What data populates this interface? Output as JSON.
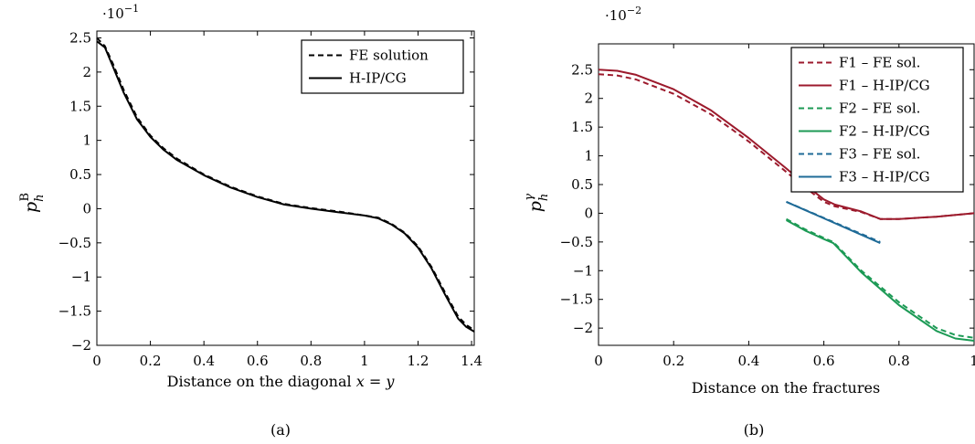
{
  "chart_data": [
    {
      "type": "line",
      "caption": "(a)",
      "xlabel": "Distance on the diagonal x = y",
      "ylabel": "p_h^B",
      "y_multiplier": "·10^−1",
      "xlim": [
        0,
        1.41
      ],
      "ylim": [
        -2,
        2.6
      ],
      "xticks": [
        "0",
        "0.2",
        "0.4",
        "0.6",
        "0.8",
        "1",
        "1.2",
        "1.4"
      ],
      "yticks": [
        "2.5",
        "2",
        "1.5",
        "1",
        "0.5",
        "0",
        "−0.5",
        "−1",
        "−1.5",
        "−2"
      ],
      "grid": false,
      "legend_position": "top-right",
      "series": [
        {
          "name": "FE solution",
          "style": "dashed",
          "color": "#000000",
          "x": [
            0,
            0.03,
            0.06,
            0.1,
            0.15,
            0.2,
            0.25,
            0.3,
            0.4,
            0.5,
            0.6,
            0.7,
            0.8,
            0.9,
            1.0,
            1.05,
            1.1,
            1.15,
            1.2,
            1.25,
            1.3,
            1.35,
            1.38,
            1.41
          ],
          "y": [
            2.5,
            2.38,
            2.12,
            1.74,
            1.34,
            1.07,
            0.88,
            0.73,
            0.5,
            0.32,
            0.18,
            0.07,
            0.01,
            -0.04,
            -0.1,
            -0.13,
            -0.22,
            -0.35,
            -0.55,
            -0.85,
            -1.22,
            -1.58,
            -1.7,
            -1.78
          ]
        },
        {
          "name": "H-IP/CG",
          "style": "solid",
          "color": "#000000",
          "x": [
            0,
            0.03,
            0.06,
            0.1,
            0.15,
            0.2,
            0.25,
            0.3,
            0.4,
            0.5,
            0.6,
            0.7,
            0.8,
            0.9,
            1.0,
            1.05,
            1.1,
            1.15,
            1.2,
            1.25,
            1.3,
            1.35,
            1.38,
            1.41
          ],
          "y": [
            2.45,
            2.36,
            2.08,
            1.7,
            1.31,
            1.05,
            0.86,
            0.71,
            0.49,
            0.31,
            0.17,
            0.06,
            0.0,
            -0.05,
            -0.1,
            -0.14,
            -0.23,
            -0.36,
            -0.57,
            -0.87,
            -1.25,
            -1.61,
            -1.73,
            -1.8
          ]
        }
      ]
    },
    {
      "type": "line",
      "caption": "(b)",
      "xlabel": "Distance on the fractures",
      "ylabel": "p_h^γ",
      "y_multiplier": "·10^−2",
      "xlim": [
        0,
        1
      ],
      "ylim": [
        -2.3,
        2.95
      ],
      "xticks": [
        "0",
        "0.2",
        "0.4",
        "0.6",
        "0.8",
        "1"
      ],
      "yticks": [
        "2.5",
        "2",
        "1.5",
        "1",
        "0.5",
        "0",
        "−0.5",
        "−1",
        "−1.5",
        "−2"
      ],
      "grid": false,
      "legend_position": "top-right",
      "series": [
        {
          "name": "F1 – FE sol.",
          "style": "dashed",
          "color": "#9c1a2c",
          "x": [
            0,
            0.05,
            0.1,
            0.2,
            0.3,
            0.4,
            0.5,
            0.55,
            0.6,
            0.63,
            0.7,
            0.75,
            0.8,
            0.9,
            1.0
          ],
          "y": [
            2.42,
            2.4,
            2.33,
            2.08,
            1.72,
            1.25,
            0.72,
            0.45,
            0.2,
            0.12,
            0.02,
            -0.1,
            -0.1,
            -0.06,
            0.0
          ]
        },
        {
          "name": "F1 – H-IP/CG",
          "style": "solid",
          "color": "#9c1a2c",
          "x": [
            0,
            0.05,
            0.1,
            0.2,
            0.3,
            0.4,
            0.5,
            0.55,
            0.6,
            0.63,
            0.7,
            0.75,
            0.8,
            0.9,
            1.0
          ],
          "y": [
            2.5,
            2.48,
            2.41,
            2.16,
            1.79,
            1.31,
            0.78,
            0.5,
            0.24,
            0.15,
            0.03,
            -0.1,
            -0.1,
            -0.06,
            0.0
          ]
        },
        {
          "name": "F2 – FE sol.",
          "style": "dashed",
          "color": "#1c9a55",
          "x": [
            0.5,
            0.55,
            0.6,
            0.625,
            0.7,
            0.8,
            0.9,
            0.95,
            1.0
          ],
          "y": [
            -0.1,
            -0.28,
            -0.43,
            -0.5,
            -1.0,
            -1.55,
            -2.0,
            -2.12,
            -2.17
          ]
        },
        {
          "name": "F2 – H-IP/CG",
          "style": "solid",
          "color": "#1c9a55",
          "x": [
            0.5,
            0.55,
            0.6,
            0.625,
            0.7,
            0.8,
            0.9,
            0.95,
            1.0
          ],
          "y": [
            -0.12,
            -0.3,
            -0.45,
            -0.52,
            -1.03,
            -1.6,
            -2.05,
            -2.18,
            -2.22
          ]
        },
        {
          "name": "F3 – FE sol.",
          "style": "dashed",
          "color": "#1f6b97",
          "x": [
            0.5,
            0.75
          ],
          "y": [
            0.2,
            -0.5
          ]
        },
        {
          "name": "F3 – H-IP/CG",
          "style": "solid",
          "color": "#1f6b97",
          "x": [
            0.5,
            0.75
          ],
          "y": [
            0.2,
            -0.52
          ]
        }
      ]
    }
  ]
}
